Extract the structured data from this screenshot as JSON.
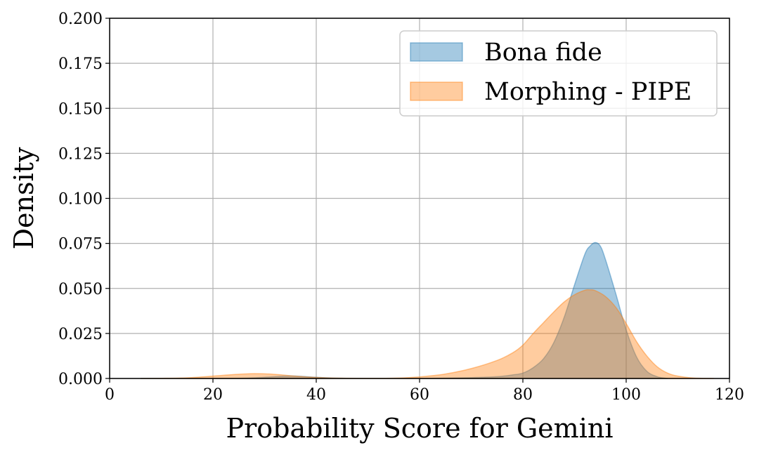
{
  "chart_data": {
    "type": "area",
    "title": "",
    "xlabel": "Probability Score for Gemini",
    "ylabel": "Density",
    "xlim": [
      0,
      120
    ],
    "ylim": [
      0,
      0.2
    ],
    "x_ticks": [
      "0",
      "20",
      "40",
      "60",
      "80",
      "100",
      "120"
    ],
    "y_ticks": [
      "0.000",
      "0.025",
      "0.050",
      "0.075",
      "0.100",
      "0.125",
      "0.150",
      "0.175",
      "0.200"
    ],
    "grid": true,
    "legend_position": "top-right",
    "series": [
      {
        "name": "Bona fide",
        "color": "#1f77b4",
        "points": [
          [
            6,
            0.0
          ],
          [
            20,
            0.0
          ],
          [
            26,
            0.0002
          ],
          [
            30,
            0.0007
          ],
          [
            33,
            0.0012
          ],
          [
            35,
            0.0014
          ],
          [
            37,
            0.0012
          ],
          [
            40,
            0.0007
          ],
          [
            44,
            0.0002
          ],
          [
            50,
            0.0
          ],
          [
            60,
            0.0
          ],
          [
            70,
            0.0005
          ],
          [
            75,
            0.001
          ],
          [
            78,
            0.002
          ],
          [
            80,
            0.003
          ],
          [
            82,
            0.006
          ],
          [
            84,
            0.011
          ],
          [
            86,
            0.02
          ],
          [
            88,
            0.034
          ],
          [
            90,
            0.052
          ],
          [
            92,
            0.069
          ],
          [
            93,
            0.0735
          ],
          [
            94,
            0.0755
          ],
          [
            95,
            0.0735
          ],
          [
            96,
            0.066
          ],
          [
            98,
            0.047
          ],
          [
            100,
            0.027
          ],
          [
            102,
            0.012
          ],
          [
            104,
            0.004
          ],
          [
            106,
            0.001
          ],
          [
            108,
            0.0
          ]
        ]
      },
      {
        "name": "Morphing - PIPE",
        "color": "#ff7f0e",
        "points": [
          [
            6,
            0.0
          ],
          [
            10,
            0.0001
          ],
          [
            15,
            0.0004
          ],
          [
            20,
            0.0013
          ],
          [
            24,
            0.0022
          ],
          [
            28,
            0.0027
          ],
          [
            32,
            0.0023
          ],
          [
            36,
            0.0013
          ],
          [
            40,
            0.0006
          ],
          [
            45,
            0.0002
          ],
          [
            50,
            0.0001
          ],
          [
            55,
            0.0002
          ],
          [
            60,
            0.0009
          ],
          [
            65,
            0.0025
          ],
          [
            70,
            0.0055
          ],
          [
            75,
            0.01
          ],
          [
            78,
            0.0142
          ],
          [
            80,
            0.0185
          ],
          [
            82,
            0.025
          ],
          [
            84,
            0.031
          ],
          [
            86,
            0.037
          ],
          [
            88,
            0.0425
          ],
          [
            90,
            0.0465
          ],
          [
            92,
            0.049
          ],
          [
            93,
            0.0492
          ],
          [
            94,
            0.0488
          ],
          [
            96,
            0.0455
          ],
          [
            98,
            0.0395
          ],
          [
            100,
            0.0305
          ],
          [
            102,
            0.0205
          ],
          [
            104,
            0.0125
          ],
          [
            106,
            0.0065
          ],
          [
            108,
            0.003
          ],
          [
            110,
            0.0013
          ],
          [
            113,
            0.0003
          ],
          [
            117,
            0.0
          ]
        ]
      }
    ]
  }
}
